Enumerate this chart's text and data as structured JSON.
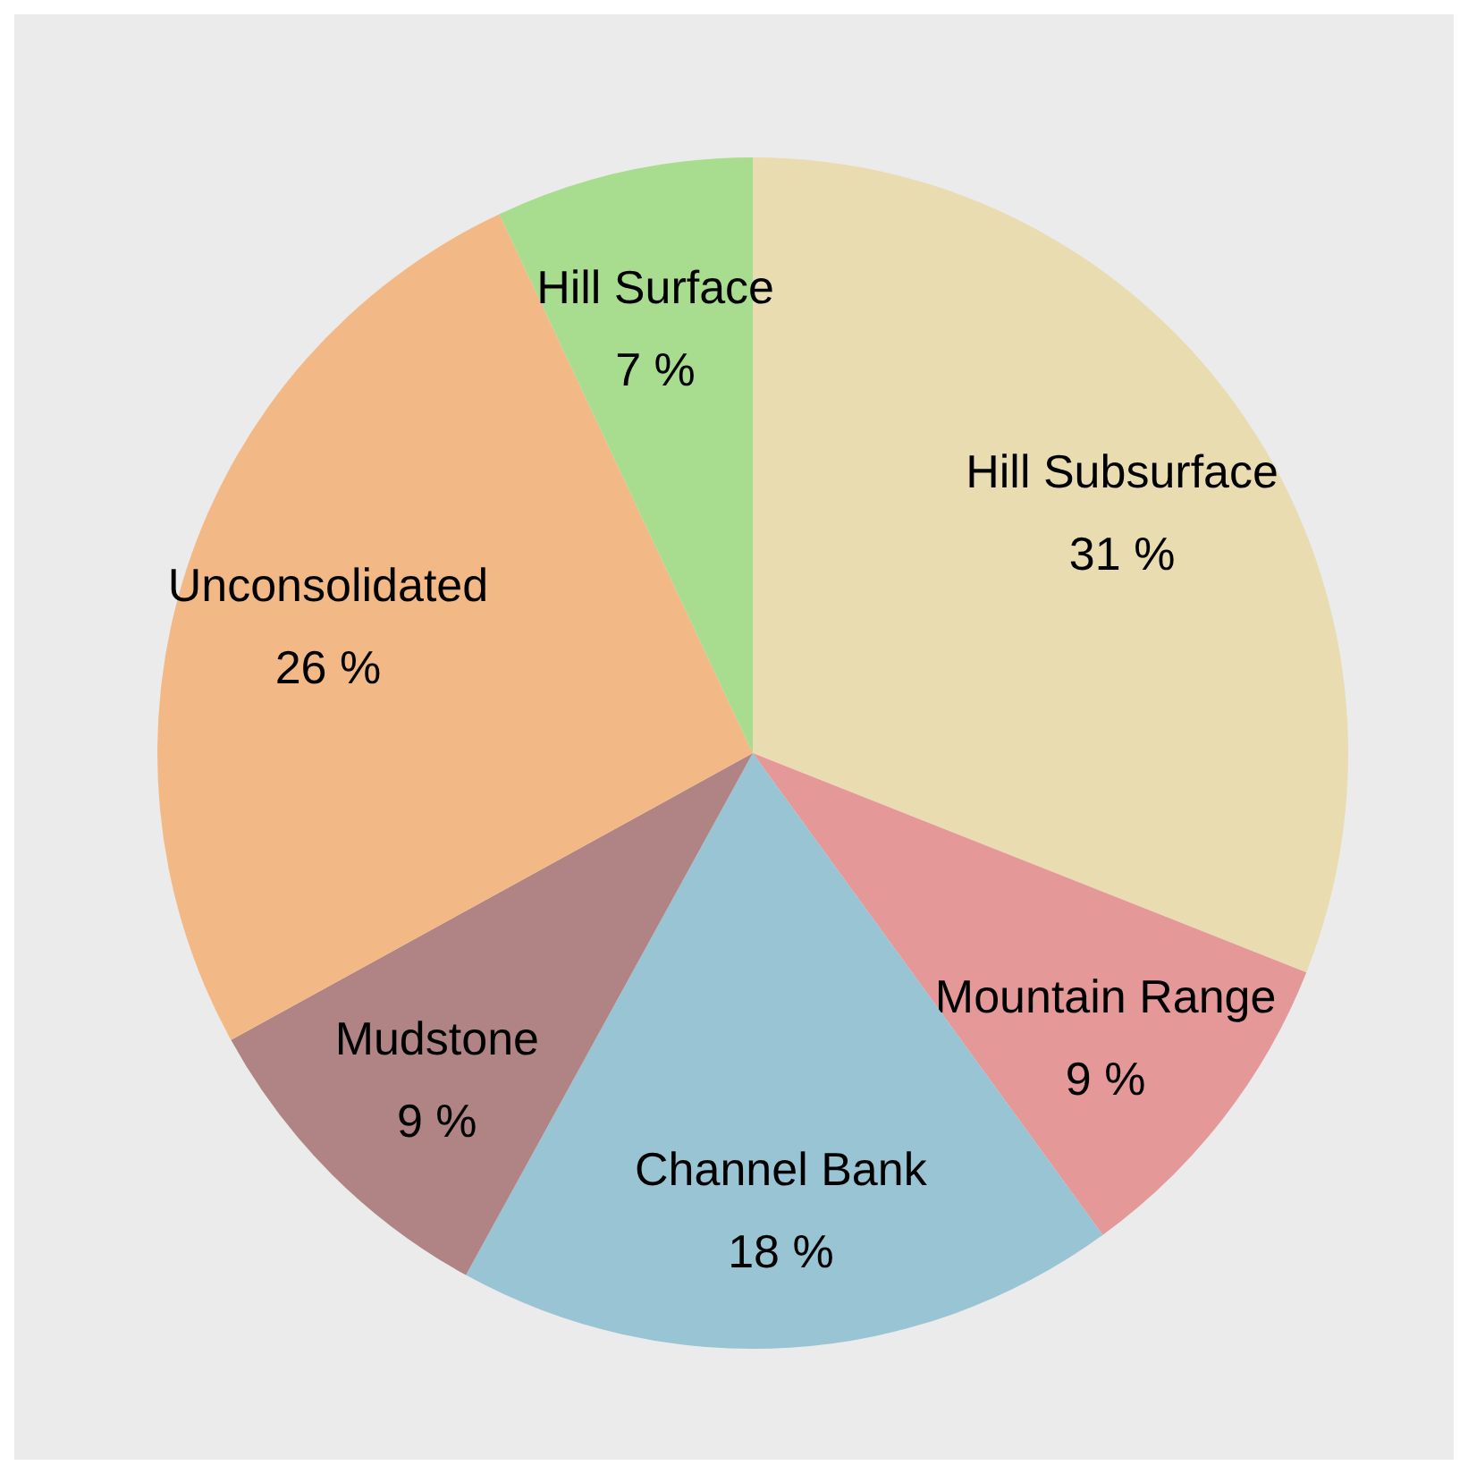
{
  "chart_data": {
    "type": "pie",
    "categories": [
      "Hill Subsurface",
      "Mountain Range",
      "Channel Bank",
      "Mudstone",
      "Unconsolidated",
      "Hill Surface"
    ],
    "values": [
      31,
      9,
      18,
      9,
      26,
      7
    ],
    "colors": [
      "#e8dcb0",
      "#e49898",
      "#98c4d4",
      "#b08484",
      "#f2b986",
      "#a8dc8e"
    ],
    "value_labels": [
      "31 %",
      "9 %",
      "18 %",
      "9 %",
      "26 %",
      "7 %"
    ]
  }
}
